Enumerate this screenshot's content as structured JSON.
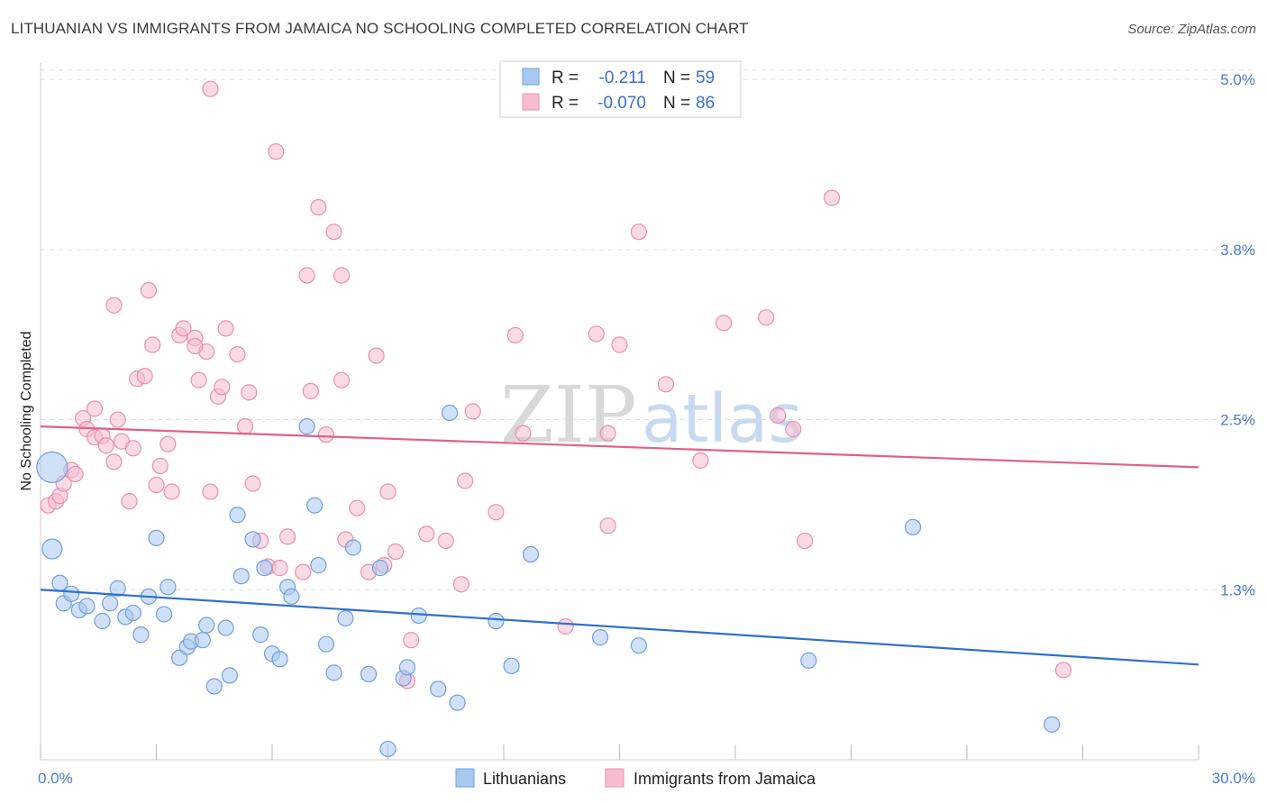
{
  "header": {
    "title": "LITHUANIAN VS IMMIGRANTS FROM JAMAICA NO SCHOOLING COMPLETED CORRELATION CHART",
    "source": "Source: ZipAtlas.com"
  },
  "watermark": {
    "zip": "ZIP",
    "atlas": "atlas"
  },
  "colors": {
    "blue_fill": "#a9c8f0",
    "blue_stroke": "#6f9fe0",
    "blue_line": "#2f6fcf",
    "pink_fill": "#f6bcd0",
    "pink_stroke": "#ea8fae",
    "pink_line": "#e0608a",
    "grid": "#dddddd",
    "axis_text": "#4a7bd0"
  },
  "legend": {
    "rows": [
      {
        "r_label": "R =",
        "r_value": "-0.211",
        "n_label": "N =",
        "n_value": "59"
      },
      {
        "r_label": "R =",
        "r_value": "-0.070",
        "n_label": "N =",
        "n_value": "86"
      }
    ],
    "bottom": [
      "Lithuanians",
      "Immigrants from Jamaica"
    ]
  },
  "chart_data": {
    "type": "scatter",
    "ylabel": "No Schooling Completed",
    "x_ticks": [
      "0.0%",
      "30.0%"
    ],
    "y_ticks": [
      {
        "value": 1.25,
        "label": "1.3%"
      },
      {
        "value": 2.5,
        "label": "2.5%"
      },
      {
        "value": 3.75,
        "label": "3.8%"
      },
      {
        "value": 5.0,
        "label": "5.0%"
      }
    ],
    "xlim": [
      0,
      30
    ],
    "ylim": [
      0,
      5.12
    ],
    "grid": true,
    "series": [
      {
        "name": "Lithuanians",
        "trend": [
          [
            0,
            1.25
          ],
          [
            30,
            0.7
          ]
        ],
        "points": [
          [
            0.3,
            2.15,
            3
          ],
          [
            0.3,
            1.55,
            2
          ],
          [
            0.5,
            1.3,
            1
          ],
          [
            0.6,
            1.15,
            1
          ],
          [
            0.8,
            1.22,
            1
          ],
          [
            1.0,
            1.1,
            1
          ],
          [
            1.2,
            1.13,
            1
          ],
          [
            1.6,
            1.02,
            1
          ],
          [
            1.8,
            1.15,
            1
          ],
          [
            2.0,
            1.26,
            1
          ],
          [
            2.2,
            1.05,
            1
          ],
          [
            2.4,
            1.08,
            1
          ],
          [
            2.6,
            0.92,
            1
          ],
          [
            2.8,
            1.2,
            1
          ],
          [
            3.0,
            1.63,
            1
          ],
          [
            3.2,
            1.07,
            1
          ],
          [
            3.3,
            1.27,
            1
          ],
          [
            3.6,
            0.75,
            1
          ],
          [
            3.8,
            0.83,
            1
          ],
          [
            3.9,
            0.87,
            1
          ],
          [
            4.2,
            0.88,
            1
          ],
          [
            4.3,
            0.99,
            1
          ],
          [
            4.5,
            0.54,
            1
          ],
          [
            4.8,
            0.97,
            1
          ],
          [
            4.9,
            0.62,
            1
          ],
          [
            5.1,
            1.8,
            1
          ],
          [
            5.2,
            1.35,
            1
          ],
          [
            5.5,
            1.62,
            1
          ],
          [
            5.7,
            0.92,
            1
          ],
          [
            5.8,
            1.41,
            1
          ],
          [
            6.0,
            0.78,
            1
          ],
          [
            6.2,
            0.74,
            1
          ],
          [
            6.4,
            1.27,
            1
          ],
          [
            6.5,
            1.2,
            1
          ],
          [
            6.9,
            2.45,
            1
          ],
          [
            7.1,
            1.87,
            1
          ],
          [
            7.2,
            1.43,
            1
          ],
          [
            7.4,
            0.85,
            1
          ],
          [
            7.6,
            0.64,
            1
          ],
          [
            7.9,
            1.04,
            1
          ],
          [
            8.1,
            1.56,
            1
          ],
          [
            8.5,
            0.63,
            1
          ],
          [
            8.8,
            1.41,
            1
          ],
          [
            9.0,
            0.08,
            1
          ],
          [
            9.4,
            0.6,
            1
          ],
          [
            9.5,
            0.68,
            1
          ],
          [
            9.8,
            1.06,
            1
          ],
          [
            10.3,
            0.52,
            1
          ],
          [
            10.6,
            2.55,
            1
          ],
          [
            10.8,
            0.42,
            1
          ],
          [
            11.8,
            1.02,
            1
          ],
          [
            12.2,
            0.69,
            1
          ],
          [
            12.7,
            1.51,
            1
          ],
          [
            14.5,
            0.9,
            1
          ],
          [
            15.5,
            0.84,
            1
          ],
          [
            19.9,
            0.73,
            1
          ],
          [
            22.6,
            1.71,
            1
          ],
          [
            26.2,
            0.26,
            1
          ]
        ]
      },
      {
        "name": "Immigrants from Jamaica",
        "trend": [
          [
            0,
            2.45
          ],
          [
            30,
            2.15
          ]
        ],
        "points": [
          [
            0.2,
            1.87,
            1
          ],
          [
            0.4,
            1.9,
            1
          ],
          [
            0.5,
            1.94,
            1
          ],
          [
            0.6,
            2.03,
            1
          ],
          [
            0.8,
            2.13,
            1
          ],
          [
            0.9,
            2.1,
            1
          ],
          [
            1.1,
            2.51,
            1
          ],
          [
            1.2,
            2.43,
            1
          ],
          [
            1.4,
            2.37,
            1
          ],
          [
            1.4,
            2.58,
            1
          ],
          [
            1.6,
            2.38,
            1
          ],
          [
            1.7,
            2.31,
            1
          ],
          [
            1.9,
            2.19,
            1
          ],
          [
            2.0,
            2.5,
            1
          ],
          [
            2.1,
            2.34,
            1
          ],
          [
            2.3,
            1.9,
            1
          ],
          [
            2.4,
            2.29,
            1
          ],
          [
            2.5,
            2.8,
            1
          ],
          [
            2.7,
            2.82,
            1
          ],
          [
            2.8,
            3.45,
            1
          ],
          [
            2.9,
            3.05,
            1
          ],
          [
            3.0,
            2.02,
            1
          ],
          [
            3.1,
            2.16,
            1
          ],
          [
            3.3,
            2.32,
            1
          ],
          [
            3.4,
            1.97,
            1
          ],
          [
            3.6,
            3.12,
            1
          ],
          [
            3.7,
            3.17,
            1
          ],
          [
            4.0,
            3.1,
            1
          ],
          [
            4.1,
            2.79,
            1
          ],
          [
            4.3,
            3.0,
            1
          ],
          [
            4.4,
            1.97,
            1
          ],
          [
            4.6,
            2.67,
            1
          ],
          [
            4.7,
            2.74,
            1
          ],
          [
            4.8,
            3.17,
            1
          ],
          [
            5.1,
            2.98,
            1
          ],
          [
            5.3,
            2.45,
            1
          ],
          [
            5.4,
            2.7,
            1
          ],
          [
            5.5,
            2.03,
            1
          ],
          [
            5.7,
            1.61,
            1
          ],
          [
            5.9,
            1.42,
            1
          ],
          [
            6.2,
            1.41,
            1
          ],
          [
            6.4,
            1.64,
            1
          ],
          [
            6.8,
            1.38,
            1
          ],
          [
            6.9,
            3.56,
            1
          ],
          [
            7.0,
            2.71,
            1
          ],
          [
            7.2,
            4.06,
            1
          ],
          [
            7.4,
            2.39,
            1
          ],
          [
            7.6,
            3.88,
            1
          ],
          [
            7.8,
            3.56,
            1
          ],
          [
            7.9,
            1.62,
            1
          ],
          [
            8.2,
            1.85,
            1
          ],
          [
            8.5,
            1.38,
            1
          ],
          [
            8.7,
            2.97,
            1
          ],
          [
            8.9,
            1.43,
            1
          ],
          [
            9.0,
            1.97,
            1
          ],
          [
            9.2,
            1.53,
            1
          ],
          [
            9.5,
            0.58,
            1
          ],
          [
            9.6,
            0.88,
            1
          ],
          [
            10.0,
            1.66,
            1
          ],
          [
            10.5,
            1.61,
            1
          ],
          [
            10.9,
            1.29,
            1
          ],
          [
            11.0,
            2.05,
            1
          ],
          [
            11.2,
            2.56,
            1
          ],
          [
            11.8,
            1.82,
            1
          ],
          [
            12.3,
            3.12,
            1
          ],
          [
            12.5,
            2.4,
            1
          ],
          [
            13.6,
            0.98,
            1
          ],
          [
            14.4,
            3.13,
            1
          ],
          [
            14.7,
            1.72,
            1
          ],
          [
            15.0,
            3.05,
            1
          ],
          [
            15.5,
            3.88,
            1
          ],
          [
            16.2,
            2.76,
            1
          ],
          [
            17.1,
            2.2,
            1
          ],
          [
            17.7,
            3.21,
            1
          ],
          [
            18.8,
            3.25,
            1
          ],
          [
            19.1,
            2.53,
            1
          ],
          [
            19.5,
            2.43,
            1
          ],
          [
            19.8,
            1.61,
            1
          ],
          [
            20.5,
            4.13,
            1
          ],
          [
            26.5,
            0.66,
            1
          ],
          [
            6.1,
            4.47,
            1
          ],
          [
            4.4,
            4.93,
            1
          ],
          [
            14.7,
            2.4,
            1
          ],
          [
            1.9,
            3.34,
            1
          ],
          [
            4.0,
            3.04,
            1
          ],
          [
            7.8,
            2.79,
            1
          ]
        ]
      }
    ]
  }
}
